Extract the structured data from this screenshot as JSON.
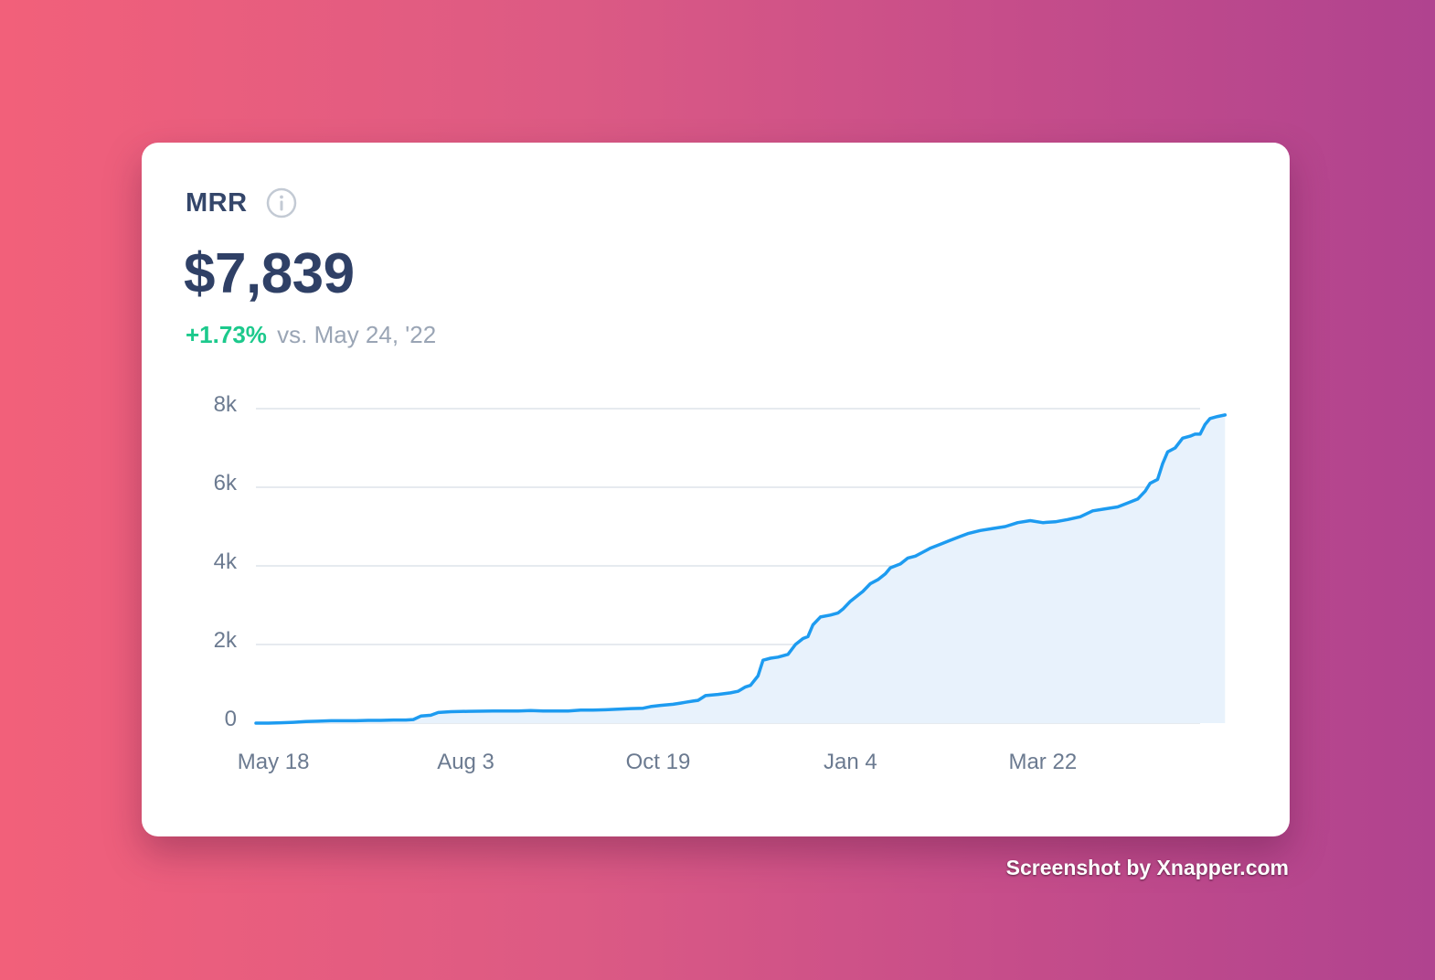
{
  "card": {
    "title": "MRR",
    "info_icon": "info-icon",
    "value": "$7,839",
    "delta": "+1.73%",
    "comparison": "vs. May 24, '22"
  },
  "colors": {
    "line": "#1d9bf0",
    "fill": "#e8f2fc",
    "grid": "#dde3ea",
    "axis_text": "#6b7a90",
    "delta": "#1cc98c"
  },
  "chart_data": {
    "type": "area",
    "title": "MRR",
    "xlabel": "",
    "ylabel": "",
    "ylim": [
      0,
      8000
    ],
    "grid": true,
    "y_ticks": [
      {
        "value": 8000,
        "label": "8k"
      },
      {
        "value": 6000,
        "label": "6k"
      },
      {
        "value": 4000,
        "label": "4k"
      },
      {
        "value": 2000,
        "label": "2k"
      },
      {
        "value": 0,
        "label": "0"
      }
    ],
    "x_ticks": [
      {
        "day": 7,
        "label": "May 18"
      },
      {
        "day": 84,
        "label": "Aug 3"
      },
      {
        "day": 161,
        "label": "Oct 19"
      },
      {
        "day": 238,
        "label": "Jan 4"
      },
      {
        "day": 315,
        "label": "Mar 22"
      }
    ],
    "x_range": [
      0,
      378
    ],
    "series": [
      {
        "name": "MRR",
        "points": [
          [
            0,
            0
          ],
          [
            5,
            0
          ],
          [
            10,
            10
          ],
          [
            15,
            20
          ],
          [
            20,
            40
          ],
          [
            25,
            50
          ],
          [
            30,
            60
          ],
          [
            35,
            60
          ],
          [
            40,
            60
          ],
          [
            45,
            70
          ],
          [
            50,
            70
          ],
          [
            55,
            80
          ],
          [
            60,
            80
          ],
          [
            63,
            90
          ],
          [
            66,
            180
          ],
          [
            70,
            200
          ],
          [
            73,
            270
          ],
          [
            78,
            290
          ],
          [
            85,
            300
          ],
          [
            95,
            310
          ],
          [
            105,
            310
          ],
          [
            110,
            320
          ],
          [
            115,
            310
          ],
          [
            125,
            310
          ],
          [
            130,
            330
          ],
          [
            135,
            330
          ],
          [
            140,
            340
          ],
          [
            150,
            370
          ],
          [
            155,
            380
          ],
          [
            158,
            420
          ],
          [
            162,
            450
          ],
          [
            167,
            480
          ],
          [
            170,
            510
          ],
          [
            172,
            530
          ],
          [
            175,
            560
          ],
          [
            177,
            580
          ],
          [
            180,
            700
          ],
          [
            185,
            730
          ],
          [
            190,
            770
          ],
          [
            193,
            810
          ],
          [
            196,
            920
          ],
          [
            198,
            960
          ],
          [
            201,
            1200
          ],
          [
            203,
            1600
          ],
          [
            206,
            1650
          ],
          [
            209,
            1680
          ],
          [
            213,
            1750
          ],
          [
            216,
            2000
          ],
          [
            219,
            2150
          ],
          [
            221,
            2200
          ],
          [
            223,
            2500
          ],
          [
            226,
            2700
          ],
          [
            230,
            2750
          ],
          [
            233,
            2800
          ],
          [
            235,
            2900
          ],
          [
            238,
            3100
          ],
          [
            240,
            3200
          ],
          [
            243,
            3350
          ],
          [
            246,
            3550
          ],
          [
            249,
            3650
          ],
          [
            252,
            3800
          ],
          [
            254,
            3950
          ],
          [
            258,
            4050
          ],
          [
            261,
            4200
          ],
          [
            264,
            4250
          ],
          [
            267,
            4350
          ],
          [
            270,
            4450
          ],
          [
            274,
            4550
          ],
          [
            278,
            4650
          ],
          [
            282,
            4750
          ],
          [
            285,
            4820
          ],
          [
            290,
            4900
          ],
          [
            295,
            4950
          ],
          [
            300,
            5000
          ],
          [
            305,
            5100
          ],
          [
            310,
            5150
          ],
          [
            315,
            5100
          ],
          [
            320,
            5120
          ],
          [
            325,
            5180
          ],
          [
            330,
            5250
          ],
          [
            335,
            5400
          ],
          [
            340,
            5450
          ],
          [
            345,
            5500
          ],
          [
            349,
            5600
          ],
          [
            353,
            5700
          ],
          [
            356,
            5900
          ],
          [
            358,
            6100
          ],
          [
            361,
            6200
          ],
          [
            363,
            6600
          ],
          [
            365,
            6900
          ],
          [
            368,
            7000
          ],
          [
            371,
            7250
          ],
          [
            374,
            7300
          ],
          [
            376,
            7350
          ],
          [
            378,
            7350
          ],
          [
            380,
            7600
          ],
          [
            382,
            7750
          ],
          [
            385,
            7800
          ],
          [
            388,
            7839
          ]
        ]
      }
    ]
  },
  "footer": {
    "credit": "Screenshot by Xnapper.com"
  }
}
